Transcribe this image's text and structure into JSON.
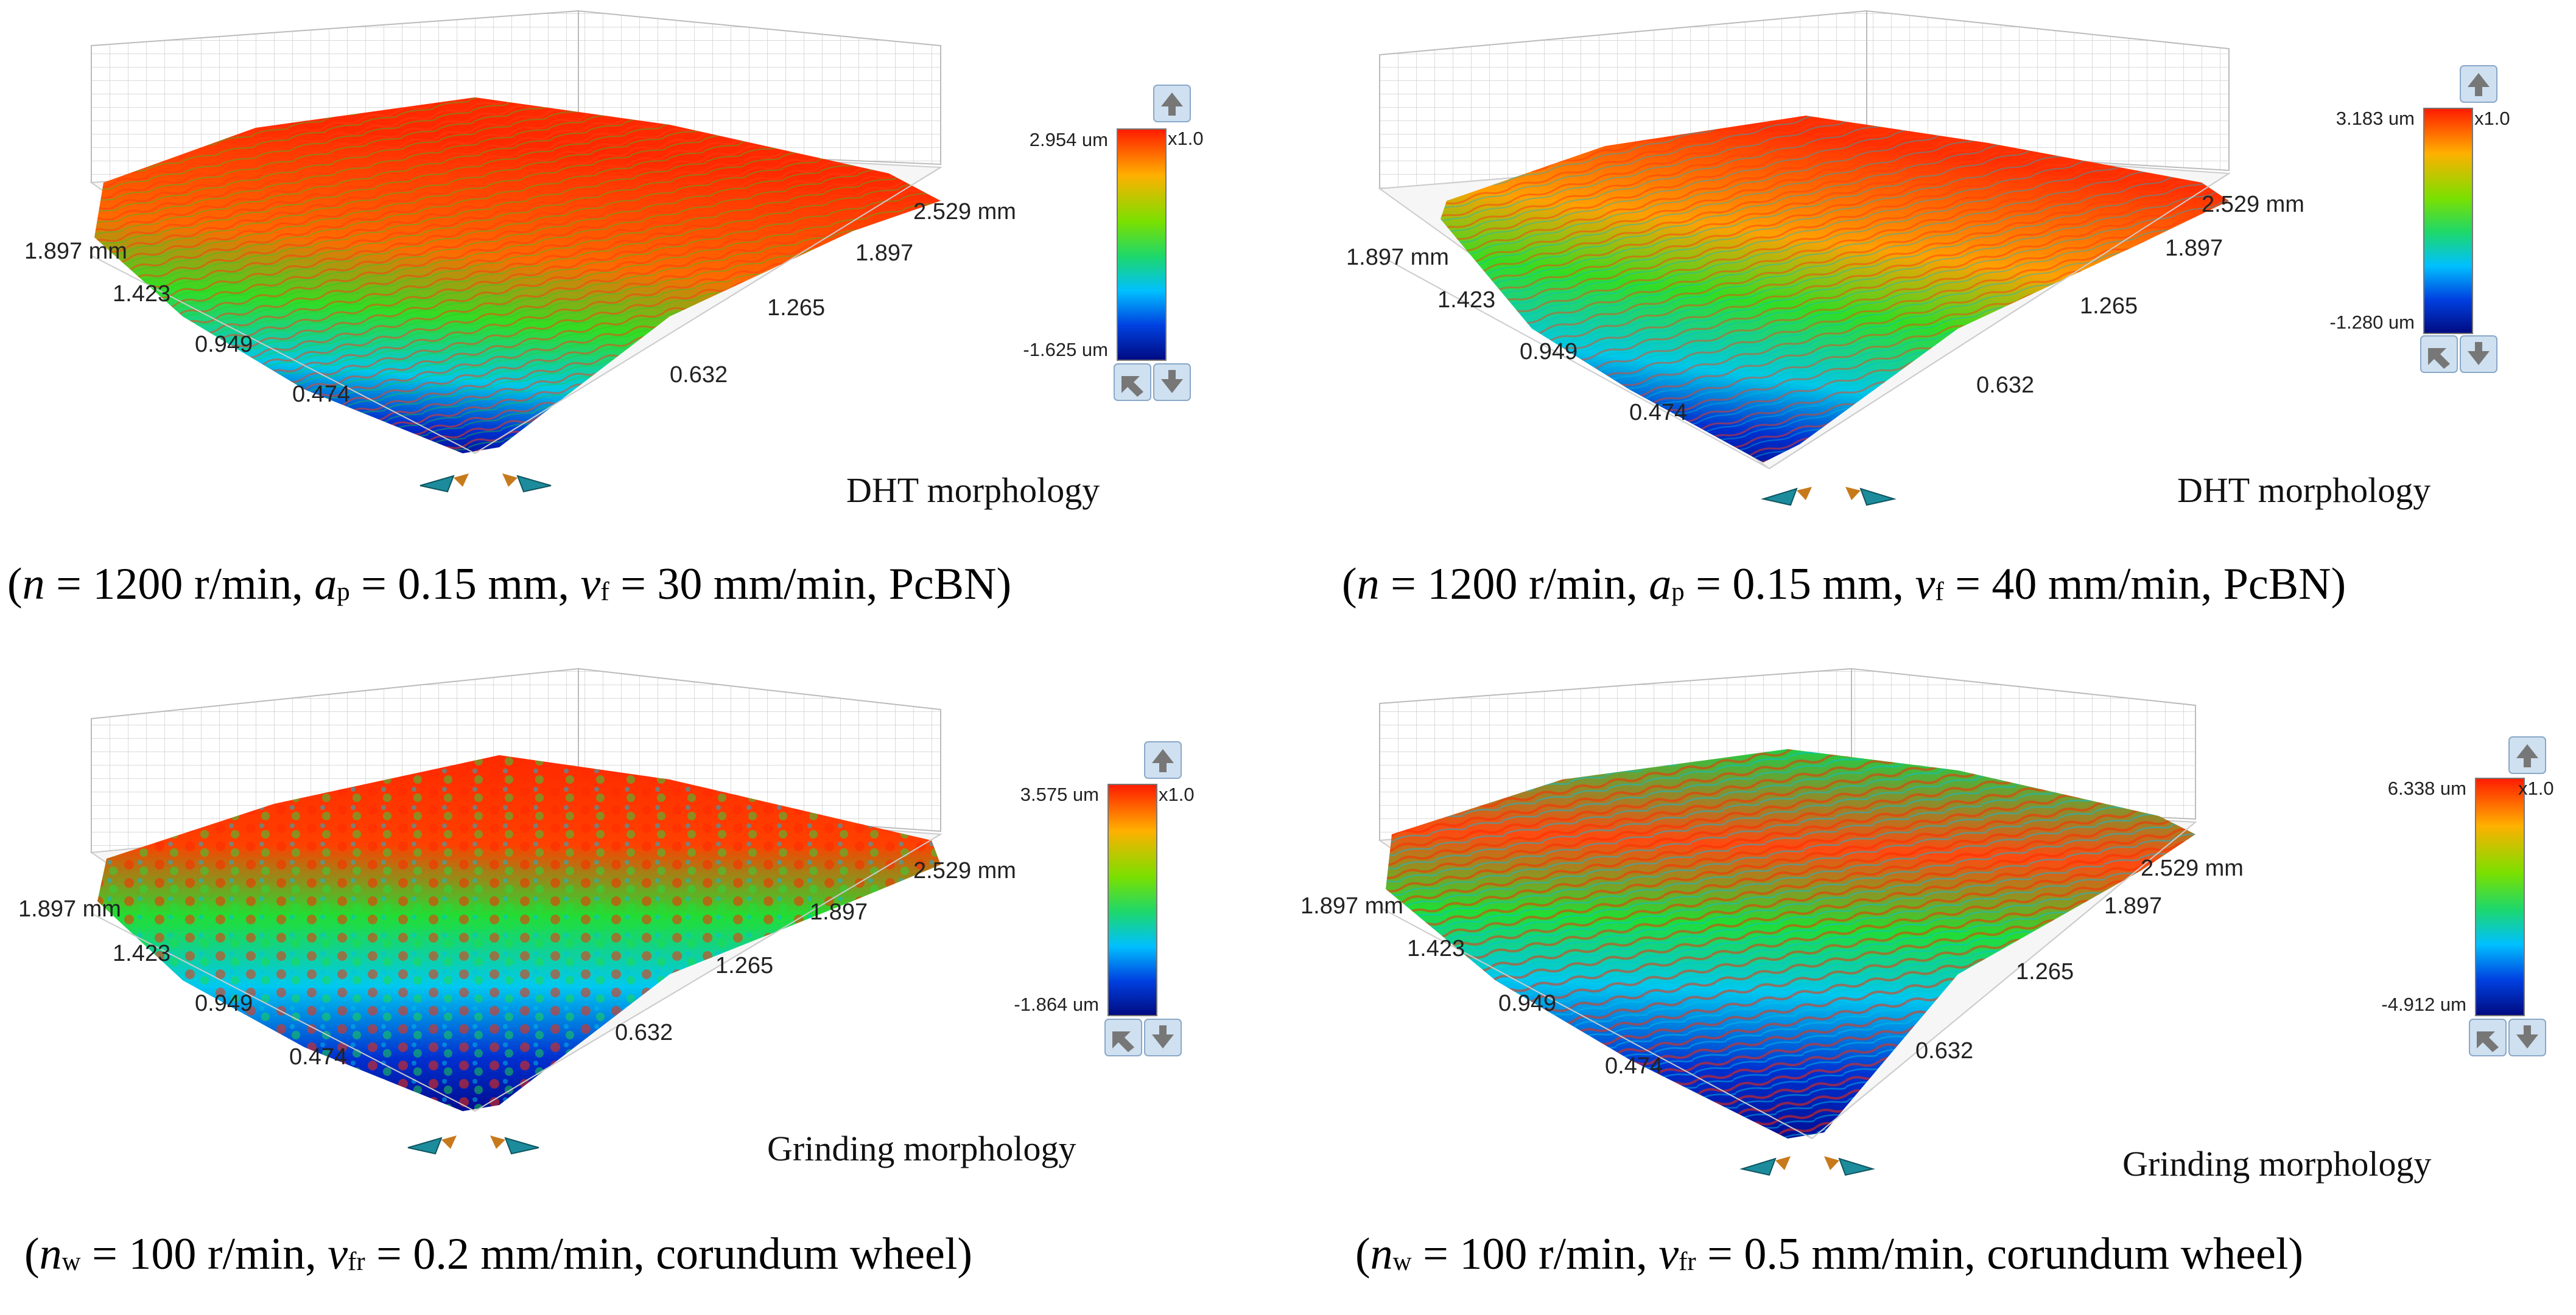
{
  "panels": [
    {
      "id": "a",
      "label": "DHT morphology",
      "colorbar": {
        "max": "2.954 um",
        "min": "-1.625 um",
        "scale": "x1.0"
      },
      "axis_x_label": "2.529 mm",
      "axis_x_ticks": [
        "1.897",
        "1.265",
        "0.632"
      ],
      "axis_y_label": "1.897 mm",
      "axis_y_ticks": [
        "1.423",
        "0.949",
        "0.474"
      ],
      "condition": {
        "open": "(",
        "v1_var": "n",
        "v1": " = 1200 r/min, ",
        "v2_var": "a",
        "v2_sub": "p",
        "v2": " = 0.15 mm, ",
        "v3_var": "v",
        "v3_sub": "f",
        "v3": " = 30 mm/min, PcBN)"
      }
    },
    {
      "id": "b",
      "label": "DHT morphology",
      "colorbar": {
        "max": "3.183 um",
        "min": "-1.280 um",
        "scale": "x1.0"
      },
      "axis_x_label": "2.529 mm",
      "axis_x_ticks": [
        "1.897",
        "1.265",
        "0.632"
      ],
      "axis_y_label": "1.897 mm",
      "axis_y_ticks": [
        "1.423",
        "0.949",
        "0.474"
      ],
      "condition": {
        "open": "(",
        "v1_var": "n",
        "v1": " = 1200 r/min, ",
        "v2_var": "a",
        "v2_sub": "p",
        "v2": " = 0.15 mm, ",
        "v3_var": "v",
        "v3_sub": "f",
        "v3": " = 40 mm/min, PcBN)"
      }
    },
    {
      "id": "c",
      "label": "Grinding morphology",
      "colorbar": {
        "max": "3.575 um",
        "min": "-1.864 um",
        "scale": "x1.0"
      },
      "axis_x_label": "2.529 mm",
      "axis_x_ticks": [
        "1.897",
        "1.265",
        "0.632"
      ],
      "axis_y_label": "1.897 mm",
      "axis_y_ticks": [
        "1.423",
        "0.949",
        "0.474"
      ],
      "condition": {
        "open": "(",
        "v1_var": "n",
        "v1_sub": "w",
        "v1": " = 100 r/min, ",
        "v2_var": "v",
        "v2_sub": "fr",
        "v2": " = 0.2 mm/min, corundum wheel)"
      }
    },
    {
      "id": "d",
      "label": "Grinding morphology",
      "colorbar": {
        "max": "6.338 um",
        "min": "-4.912 um",
        "scale": "x1.0"
      },
      "axis_x_label": "2.529 mm",
      "axis_x_ticks": [
        "1.897",
        "1.265",
        "0.632"
      ],
      "axis_y_label": "1.897 mm",
      "axis_y_ticks": [
        "1.423",
        "0.949",
        "0.474"
      ],
      "condition": {
        "open": "(",
        "v1_var": "n",
        "v1_sub": "w",
        "v1": " = 100 r/min, ",
        "v2_var": "v",
        "v2_sub": "fr",
        "v2": " = 0.5 mm/min, corundum wheel)"
      }
    }
  ],
  "colors": {
    "high": "#ff2a00",
    "mid_high": "#ffd000",
    "mid": "#22dd22",
    "mid_low": "#00c8ff",
    "low": "#0010a0",
    "arrow_teal": "#1c8c9c",
    "arrow_orange": "#c77a1c",
    "button_bg": "#cfe0f0"
  },
  "icons": [
    "arrow-up-icon",
    "arrow-down-icon",
    "reset-view-icon",
    "rotate-left-icon",
    "rotate-right-icon"
  ]
}
